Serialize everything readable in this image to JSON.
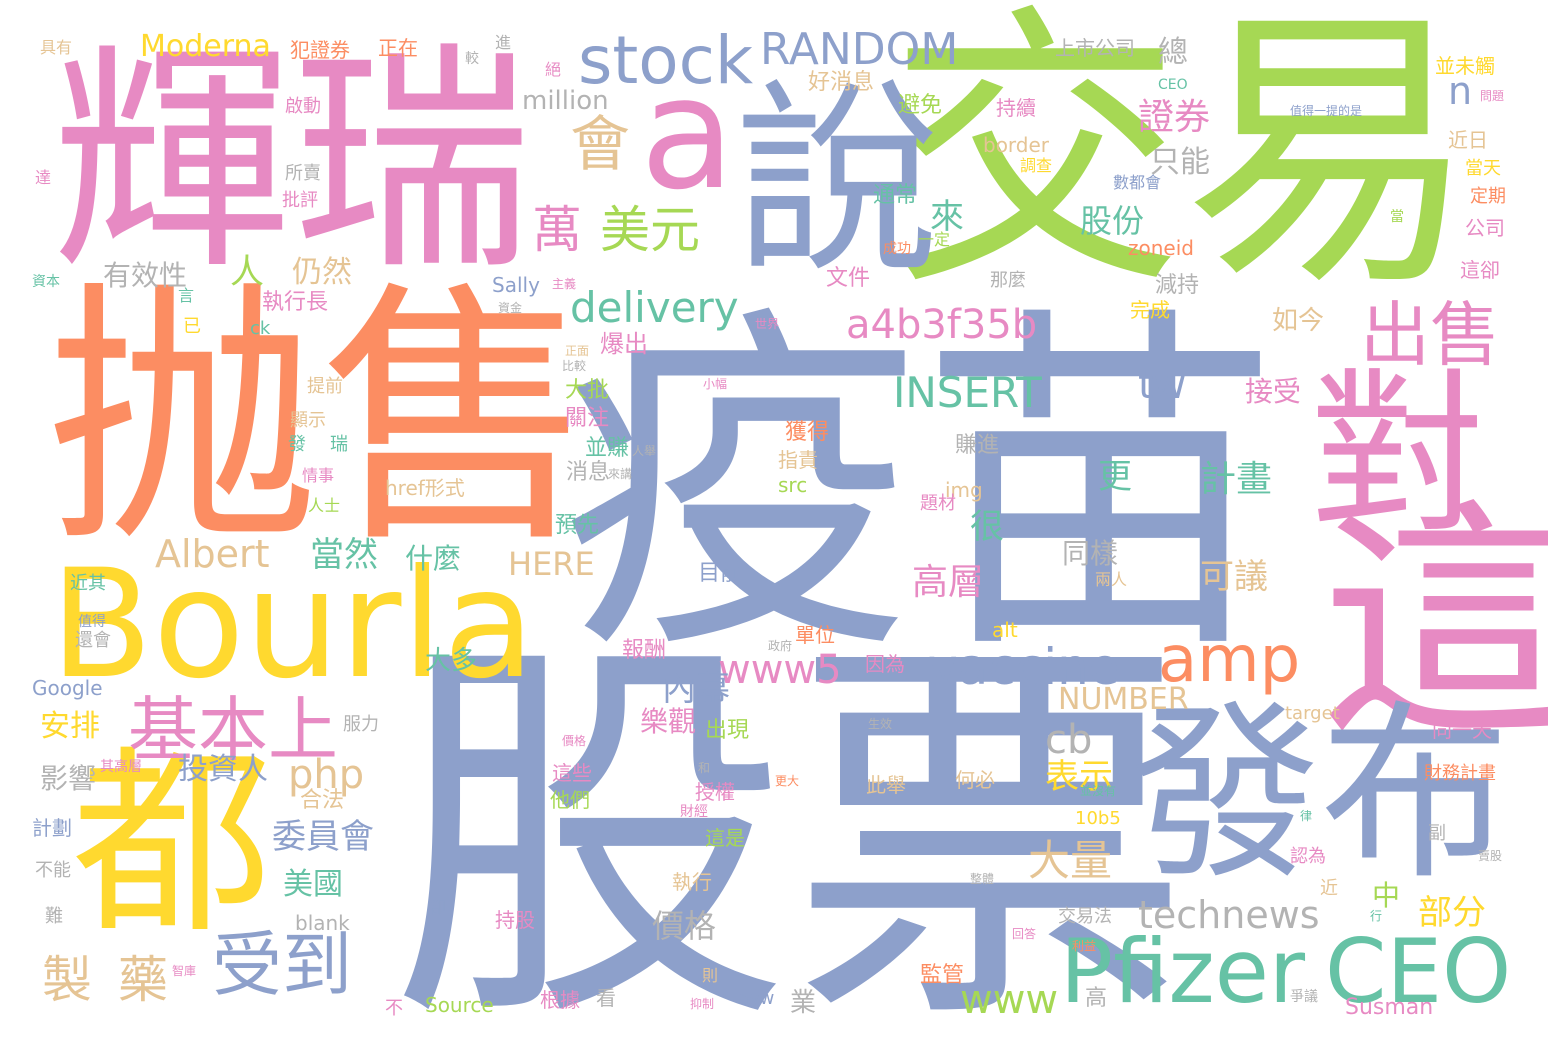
{
  "palette": {
    "pink": "#e78ac3",
    "orange": "#fc8d62",
    "green": "#a6d854",
    "blue": "#8da0cb",
    "yellow": "#ffd92f",
    "teal": "#66c2a5",
    "tan": "#e5c494",
    "gray": "#b3b3b3"
  },
  "words": [
    {
      "text": "疫苗",
      "color": "blue"
    },
    {
      "text": "股票",
      "color": "blue"
    },
    {
      "text": "抛售",
      "color": "orange"
    },
    {
      "text": "交易",
      "color": "green"
    },
    {
      "text": "輝瑞",
      "color": "pink"
    },
    {
      "text": "Bourla",
      "color": "yellow"
    },
    {
      "text": "這",
      "color": "pink"
    },
    {
      "text": "發布",
      "color": "blue"
    },
    {
      "text": "都",
      "color": "yellow"
    },
    {
      "text": "對",
      "color": "pink"
    },
    {
      "text": "說",
      "color": "blue"
    },
    {
      "text": "a",
      "color": "pink"
    },
    {
      "text": "Pfizer",
      "color": "teal"
    },
    {
      "text": "CEO",
      "color": "teal"
    },
    {
      "text": "stock",
      "color": "blue"
    },
    {
      "text": "出售",
      "color": "pink"
    },
    {
      "text": "基本上",
      "color": "pink"
    },
    {
      "text": "amp",
      "color": "orange"
    },
    {
      "text": "vaccine",
      "color": "blue"
    },
    {
      "text": "受到",
      "color": "blue"
    },
    {
      "text": "RANDOM",
      "color": "blue"
    },
    {
      "text": "會",
      "color": "tan"
    },
    {
      "text": "萬",
      "color": "pink"
    },
    {
      "text": "美元",
      "color": "green"
    },
    {
      "text": "delivery",
      "color": "teal"
    },
    {
      "text": "a4b3f35b",
      "color": "pink"
    },
    {
      "text": "INSERT",
      "color": "teal"
    },
    {
      "text": "Albert",
      "color": "tan"
    },
    {
      "text": "www5",
      "color": "pink"
    },
    {
      "text": "technews",
      "color": "gray"
    },
    {
      "text": "製",
      "color": "tan"
    },
    {
      "text": "藥",
      "color": "tan"
    },
    {
      "text": "php",
      "color": "tan"
    },
    {
      "text": "tw",
      "color": "blue"
    },
    {
      "text": "cb",
      "color": "gray"
    },
    {
      "text": "www",
      "color": "green"
    },
    {
      "text": "NUMBER",
      "color": "tan"
    },
    {
      "text": "大量",
      "color": "tan"
    },
    {
      "text": "n",
      "color": "blue"
    },
    {
      "text": "Moderna",
      "color": "yellow"
    },
    {
      "text": "million",
      "color": "gray"
    },
    {
      "text": "HERE",
      "color": "tan"
    },
    {
      "text": "證券",
      "color": "pink"
    },
    {
      "text": "股份",
      "color": "teal"
    },
    {
      "text": "仍然",
      "color": "tan"
    },
    {
      "text": "有效性",
      "color": "gray"
    },
    {
      "text": "人",
      "color": "green"
    },
    {
      "text": "來",
      "color": "teal"
    },
    {
      "text": "總",
      "color": "gray"
    },
    {
      "text": "只能",
      "color": "gray"
    },
    {
      "text": "計畫",
      "color": "teal"
    },
    {
      "text": "更",
      "color": "teal"
    },
    {
      "text": "可議",
      "color": "tan"
    },
    {
      "text": "同樣",
      "color": "gray"
    },
    {
      "text": "高層",
      "color": "pink"
    },
    {
      "text": "很",
      "color": "teal"
    },
    {
      "text": "當然",
      "color": "teal"
    },
    {
      "text": "什麼",
      "color": "teal"
    },
    {
      "text": "安排",
      "color": "yellow"
    },
    {
      "text": "內幕",
      "color": "blue"
    },
    {
      "text": "樂觀",
      "color": "pink"
    },
    {
      "text": "表示",
      "color": "yellow"
    },
    {
      "text": "投資人",
      "color": "blue"
    },
    {
      "text": "委員會",
      "color": "blue"
    },
    {
      "text": "美國",
      "color": "teal"
    },
    {
      "text": "價格",
      "color": "gray"
    },
    {
      "text": "影響",
      "color": "gray"
    },
    {
      "text": "部分",
      "color": "yellow"
    },
    {
      "text": "中",
      "color": "green"
    },
    {
      "text": "如今",
      "color": "tan"
    },
    {
      "text": "接受",
      "color": "pink"
    },
    {
      "text": "大批",
      "color": "green"
    },
    {
      "text": "爆出",
      "color": "pink"
    },
    {
      "text": "關注",
      "color": "pink"
    },
    {
      "text": "並賺",
      "color": "teal"
    },
    {
      "text": "消息",
      "color": "gray"
    },
    {
      "text": "預先",
      "color": "teal"
    },
    {
      "text": "大多",
      "color": "teal"
    },
    {
      "text": "目前",
      "color": "blue"
    },
    {
      "text": "報酬",
      "color": "pink"
    },
    {
      "text": "出現",
      "color": "green"
    },
    {
      "text": "上市公司",
      "color": "gray"
    },
    {
      "text": "好消息",
      "color": "tan"
    },
    {
      "text": "通常",
      "color": "teal"
    },
    {
      "text": "避免",
      "color": "green"
    },
    {
      "text": "持續",
      "color": "pink"
    },
    {
      "text": "減持",
      "color": "gray"
    },
    {
      "text": "完成",
      "color": "yellow"
    },
    {
      "text": "zoneid",
      "color": "orange"
    },
    {
      "text": "Sally",
      "color": "blue"
    },
    {
      "text": "文件",
      "color": "pink"
    },
    {
      "text": "那麼",
      "color": "gray"
    },
    {
      "text": "執行長",
      "color": "pink"
    },
    {
      "text": "獲得",
      "color": "orange"
    },
    {
      "text": "指責",
      "color": "tan"
    },
    {
      "text": "賺進",
      "color": "gray"
    },
    {
      "text": "src",
      "color": "green"
    },
    {
      "text": "img",
      "color": "tan"
    },
    {
      "text": "題材",
      "color": "pink"
    },
    {
      "text": "href形式",
      "color": "tan"
    },
    {
      "text": "單位",
      "color": "orange"
    },
    {
      "text": "因為",
      "color": "pink"
    },
    {
      "text": "alt",
      "color": "yellow"
    },
    {
      "text": "border",
      "color": "tan"
    },
    {
      "text": "Google",
      "color": "blue"
    },
    {
      "text": "合法",
      "color": "tan"
    },
    {
      "text": "計劃",
      "color": "blue"
    },
    {
      "text": "blank",
      "color": "gray"
    },
    {
      "text": "Source",
      "color": "green"
    },
    {
      "text": "Susman",
      "color": "pink"
    },
    {
      "text": "target",
      "color": "tan"
    },
    {
      "text": "同一天",
      "color": "pink"
    },
    {
      "text": "財務計畫",
      "color": "orange"
    },
    {
      "text": "10b5",
      "color": "yellow"
    },
    {
      "text": "交易法",
      "color": "gray"
    },
    {
      "text": "持股",
      "color": "pink"
    },
    {
      "text": "根據",
      "color": "pink"
    },
    {
      "text": "看",
      "color": "gray"
    },
    {
      "text": "業",
      "color": "gray"
    },
    {
      "text": "高",
      "color": "gray"
    },
    {
      "text": "avw",
      "color": "blue"
    },
    {
      "text": "監管",
      "color": "orange"
    },
    {
      "text": "執行",
      "color": "tan"
    },
    {
      "text": "這是",
      "color": "green"
    },
    {
      "text": "這些",
      "color": "pink"
    },
    {
      "text": "他們",
      "color": "green"
    },
    {
      "text": "授權",
      "color": "pink"
    },
    {
      "text": "此舉",
      "color": "tan"
    },
    {
      "text": "何必",
      "color": "tan"
    },
    {
      "text": "近日",
      "color": "tan"
    },
    {
      "text": "當天",
      "color": "yellow"
    },
    {
      "text": "定期",
      "color": "orange"
    },
    {
      "text": "公司",
      "color": "pink"
    },
    {
      "text": "這卻",
      "color": "pink"
    },
    {
      "text": "並未觸",
      "color": "yellow"
    },
    {
      "text": "具有",
      "color": "tan"
    },
    {
      "text": "犯證券",
      "color": "orange"
    },
    {
      "text": "正在",
      "color": "orange"
    },
    {
      "text": "啟動",
      "color": "pink"
    },
    {
      "text": "所賣",
      "color": "gray"
    },
    {
      "text": "批評",
      "color": "pink"
    },
    {
      "text": "達",
      "color": "pink"
    },
    {
      "text": "資本",
      "color": "teal"
    },
    {
      "text": "言",
      "color": "teal"
    },
    {
      "text": "已",
      "color": "yellow"
    },
    {
      "text": "ck",
      "color": "teal"
    },
    {
      "text": "提前",
      "color": "tan"
    },
    {
      "text": "顯示",
      "color": "tan"
    },
    {
      "text": "發",
      "color": "teal"
    },
    {
      "text": "瑞",
      "color": "teal"
    },
    {
      "text": "情事",
      "color": "pink"
    },
    {
      "text": "人士",
      "color": "green"
    },
    {
      "text": "近其",
      "color": "teal"
    },
    {
      "text": "還會",
      "color": "gray"
    },
    {
      "text": "服力",
      "color": "gray"
    },
    {
      "text": "不能",
      "color": "gray"
    },
    {
      "text": "難",
      "color": "gray"
    },
    {
      "text": "卻",
      "color": "blue"
    },
    {
      "text": "不",
      "color": "pink"
    },
    {
      "text": "則",
      "color": "tan"
    },
    {
      "text": "近",
      "color": "tan"
    },
    {
      "text": "副",
      "color": "gray"
    },
    {
      "text": "認為",
      "color": "pink"
    },
    {
      "text": "一定",
      "color": "green"
    },
    {
      "text": "成功",
      "color": "orange"
    },
    {
      "text": "進",
      "color": "gray"
    },
    {
      "text": "絕",
      "color": "pink"
    },
    {
      "text": "數都會",
      "color": "blue"
    },
    {
      "text": "調查",
      "color": "yellow"
    },
    {
      "text": "值得一提的是",
      "color": "blue"
    },
    {
      "text": "CEO",
      "color": "teal"
    },
    {
      "text": "問題",
      "color": "pink"
    },
    {
      "text": "當",
      "color": "green"
    },
    {
      "text": "世界",
      "color": "pink"
    },
    {
      "text": "小幅",
      "color": "pink"
    },
    {
      "text": "比較",
      "color": "gray"
    },
    {
      "text": "正面",
      "color": "tan"
    },
    {
      "text": "人舉",
      "color": "gray"
    },
    {
      "text": "來講",
      "color": "gray"
    },
    {
      "text": "兩人",
      "color": "tan"
    },
    {
      "text": "政府",
      "color": "gray"
    },
    {
      "text": "生效",
      "color": "gray"
    },
    {
      "text": "和",
      "color": "gray"
    },
    {
      "text": "並沒有",
      "color": "teal"
    },
    {
      "text": "更大",
      "color": "orange"
    },
    {
      "text": "財經",
      "color": "pink"
    },
    {
      "text": "律",
      "color": "teal"
    },
    {
      "text": "賣股",
      "color": "gray"
    },
    {
      "text": "行",
      "color": "teal"
    },
    {
      "text": "爭議",
      "color": "gray"
    },
    {
      "text": "回答",
      "color": "pink"
    },
    {
      "text": "整體",
      "color": "gray"
    },
    {
      "text": "智庫",
      "color": "pink"
    },
    {
      "text": "抑制",
      "color": "pink"
    },
    {
      "text": "其高層",
      "color": "pink"
    },
    {
      "text": "價格",
      "color": "pink"
    },
    {
      "text": "值得",
      "color": "blue"
    },
    {
      "text": "較",
      "color": "gray"
    },
    {
      "text": "資金",
      "color": "gray"
    },
    {
      "text": "主義",
      "color": "pink"
    },
    {
      "text": "利益",
      "color": "orange"
    }
  ]
}
